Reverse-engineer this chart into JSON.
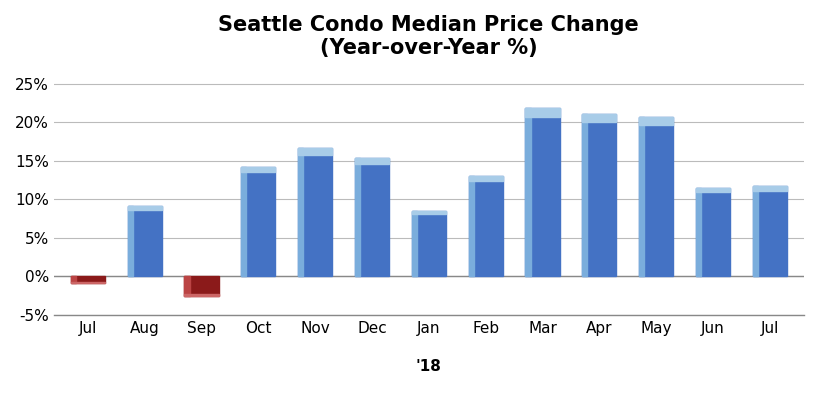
{
  "categories": [
    "Jul",
    "Aug",
    "Sep",
    "Oct",
    "Nov",
    "Dec",
    "Jan",
    "Feb",
    "Mar",
    "Apr",
    "May",
    "Jun",
    "Jul"
  ],
  "values": [
    -0.8,
    9.1,
    -2.5,
    14.2,
    16.6,
    15.4,
    8.5,
    13.0,
    21.8,
    21.0,
    20.7,
    11.5,
    11.7
  ],
  "bar_color_main": "#4472C4",
  "bar_color_light": "#7AADDC",
  "bar_color_top": "#A8CCE8",
  "bar_neg_main": "#8B1A1A",
  "bar_neg_light": "#BB4444",
  "bar_neg_top": "#CC6666",
  "title_line1": "Seattle Condo Median Price Change",
  "title_line2": "(Year-over-Year %)",
  "label_18": "'18",
  "ylim": [
    -5,
    27
  ],
  "yticks": [
    -5,
    0,
    5,
    10,
    15,
    20,
    25
  ],
  "ytick_labels": [
    "-5%",
    "0%",
    "5%",
    "10%",
    "15%",
    "20%",
    "25%"
  ],
  "background_color": "#FFFFFF",
  "grid_color": "#BBBBBB",
  "title_fontsize": 15,
  "tick_fontsize": 11
}
